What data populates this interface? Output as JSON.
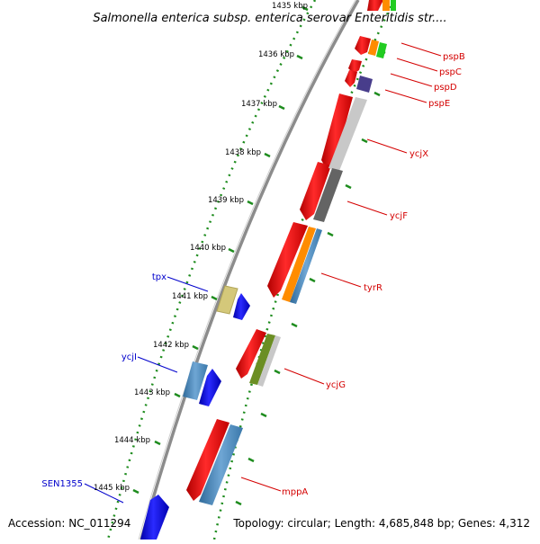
{
  "title": "Salmonella enterica subsp. enterica serovar Enteritidis str....",
  "accession": "Accession: NC_011294",
  "topology": "Topology: circular; Length: 4,685,848 bp; Genes: 4,312",
  "ticks": [
    "1435 kbp",
    "1436 kbp",
    "1437 kbp",
    "1438 kbp",
    "1439 kbp",
    "1440 kbp",
    "1441 kbp",
    "1442 kbp",
    "1443 kbp",
    "1444 kbp",
    "1445 kbp"
  ],
  "genes_right": [
    "pspB",
    "pspC",
    "pspD",
    "pspE",
    "ycjX",
    "ycjF",
    "tyrR",
    "ycjG",
    "mppA"
  ],
  "genes_left": [
    "tpx",
    "ycjI",
    "SEN1355"
  ],
  "colors": {
    "forward_gene": "#ff0000",
    "reverse_gene": "#0000ff",
    "label_right": "#d40000",
    "label_left": "#0000cc",
    "backbone": "#808080",
    "tick_dots": "#1e8c1e",
    "cog_blue": "#4682b4",
    "cog_orange": "#ff8c00",
    "cog_green": "#22cc22",
    "cog_olive": "#6b8e23",
    "cog_khaki": "#d4c87a",
    "cog_gray_light": "#c8c8c8",
    "cog_gray_dark": "#646464",
    "cog_purple": "#483d8b"
  }
}
